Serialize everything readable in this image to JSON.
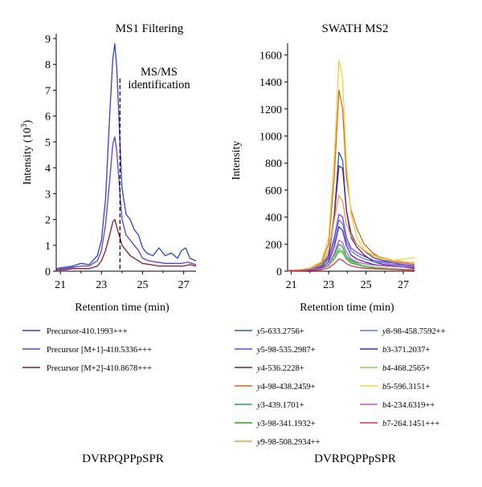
{
  "chart_data": [
    {
      "type": "line",
      "title": "MS1 Filtering",
      "xlabel": "Retention time (min)",
      "ylabel_main": "Intensity (10",
      "ylabel_sup": "3",
      "ylabel_tail": ")",
      "xlim": [
        20.8,
        27.6
      ],
      "ylim": [
        0,
        9
      ],
      "xticks": [
        "21",
        "23",
        "25",
        "27"
      ],
      "xtick_values": [
        21,
        23,
        25,
        27
      ],
      "yticks": [
        "0",
        "1",
        "2",
        "3",
        "4",
        "5",
        "6",
        "7",
        "8",
        "9"
      ],
      "ytick_values": [
        0,
        1,
        2,
        3,
        4,
        5,
        6,
        7,
        8,
        9
      ],
      "annotation": {
        "line1": "MS/MS",
        "line2": "identification",
        "x": 23.9
      },
      "peptide": "DVRPQPPpSPR",
      "series": [
        {
          "name": "Precursor-410.1993+++",
          "color": "#2846c8",
          "x": [
            20.8,
            21.2,
            21.6,
            22.0,
            22.4,
            22.8,
            23.0,
            23.2,
            23.4,
            23.55,
            23.65,
            23.75,
            23.9,
            24.0,
            24.2,
            24.4,
            24.6,
            24.8,
            25.0,
            25.2,
            25.5,
            25.8,
            26.1,
            26.4,
            26.7,
            26.9,
            27.1,
            27.3,
            27.6
          ],
          "y": [
            0.1,
            0.15,
            0.2,
            0.3,
            0.25,
            0.6,
            1.2,
            2.8,
            6.0,
            8.2,
            8.8,
            7.8,
            5.0,
            3.2,
            2.2,
            2.0,
            1.6,
            1.4,
            0.9,
            0.7,
            0.6,
            0.9,
            0.6,
            0.7,
            0.5,
            0.8,
            0.9,
            0.5,
            0.4
          ]
        },
        {
          "name": "Precursor [M+1]-410.5336+++",
          "color": "#6a3cc9",
          "x": [
            20.8,
            21.2,
            21.6,
            22.0,
            22.4,
            22.8,
            23.0,
            23.2,
            23.4,
            23.55,
            23.65,
            23.75,
            23.9,
            24.0,
            24.2,
            24.4,
            24.6,
            24.8,
            25.0,
            25.3,
            25.7,
            26.1,
            26.5,
            26.9,
            27.2,
            27.6
          ],
          "y": [
            0.1,
            0.1,
            0.15,
            0.2,
            0.2,
            0.4,
            0.8,
            1.8,
            3.5,
            4.9,
            5.2,
            4.6,
            3.0,
            2.0,
            1.4,
            1.2,
            1.0,
            0.8,
            0.5,
            0.4,
            0.35,
            0.3,
            0.3,
            0.3,
            0.35,
            0.25
          ]
        },
        {
          "name": "Precursor [M+2]-410.8678+++",
          "color": "#8b1a2e",
          "x": [
            20.8,
            21.2,
            21.6,
            22.0,
            22.4,
            22.8,
            23.0,
            23.2,
            23.4,
            23.55,
            23.65,
            23.75,
            23.9,
            24.0,
            24.2,
            24.4,
            24.6,
            24.8,
            25.0,
            25.4,
            25.8,
            26.2,
            26.6,
            27.0,
            27.3,
            27.6
          ],
          "y": [
            0.05,
            0.05,
            0.1,
            0.1,
            0.1,
            0.2,
            0.4,
            0.8,
            1.4,
            1.9,
            2.0,
            1.7,
            1.3,
            1.0,
            0.8,
            0.6,
            0.5,
            0.4,
            0.3,
            0.25,
            0.2,
            0.2,
            0.2,
            0.2,
            0.25,
            0.2
          ]
        }
      ]
    },
    {
      "type": "line",
      "title": "SWATH MS2",
      "xlabel": "Retention time (min)",
      "ylabel": "Intensity",
      "xlim": [
        20.8,
        27.6
      ],
      "ylim": [
        0,
        1650
      ],
      "xticks": [
        "21",
        "23",
        "25",
        "27"
      ],
      "xtick_values": [
        21,
        23,
        25,
        27
      ],
      "yticks": [
        "0",
        "200",
        "400",
        "600",
        "800",
        "1000",
        "1200",
        "1400",
        "1600"
      ],
      "ytick_values": [
        0,
        200,
        400,
        600,
        800,
        1000,
        1200,
        1400,
        1600
      ],
      "peptide": "DVRPQPPpSPR",
      "x": [
        20.8,
        21.4,
        22.0,
        22.6,
        23.0,
        23.3,
        23.55,
        23.75,
        23.95,
        24.2,
        24.5,
        24.9,
        25.4,
        25.9,
        26.5,
        27.0,
        27.6
      ],
      "series": [
        {
          "name_italic": "y",
          "name_rest": "5-633.2756+",
          "color": "#2b5ea8",
          "y": [
            5,
            10,
            15,
            40,
            120,
            420,
            880,
            820,
            450,
            280,
            200,
            150,
            100,
            80,
            60,
            40,
            30
          ]
        },
        {
          "name_italic": "y",
          "name_rest": "5-98-535.2987+",
          "color": "#7b3fe0",
          "y": [
            5,
            10,
            15,
            35,
            90,
            250,
            420,
            400,
            250,
            170,
            140,
            110,
            80,
            70,
            60,
            50,
            40
          ]
        },
        {
          "name_italic": "y",
          "name_rest": "4-536.2228+",
          "color": "#6b1f6e",
          "y": [
            5,
            8,
            12,
            30,
            100,
            400,
            780,
            760,
            450,
            250,
            180,
            120,
            70,
            50,
            40,
            30,
            20
          ]
        },
        {
          "name_italic": "y",
          "name_rest": "4-98-438.2459+",
          "color": "#d2691e",
          "y": [
            5,
            10,
            20,
            60,
            200,
            700,
            1340,
            1200,
            700,
            450,
            320,
            200,
            130,
            90,
            70,
            60,
            50
          ]
        },
        {
          "name_italic": "y",
          "name_rest": "3-439.1701+",
          "color": "#2e9a6a",
          "y": [
            3,
            5,
            10,
            20,
            50,
            120,
            200,
            180,
            110,
            80,
            60,
            40,
            30,
            20,
            15,
            10,
            10
          ]
        },
        {
          "name_italic": "y",
          "name_rest": "3-98-341.1932+",
          "color": "#2aa02a",
          "y": [
            3,
            5,
            10,
            18,
            40,
            90,
            150,
            140,
            90,
            60,
            50,
            35,
            25,
            20,
            15,
            12,
            10
          ]
        },
        {
          "name_italic": "y",
          "name_rest": "9-98-508.2934++",
          "color": "#f39c3d",
          "y": [
            5,
            10,
            20,
            50,
            150,
            380,
            560,
            520,
            350,
            260,
            200,
            150,
            120,
            100,
            80,
            70,
            60
          ]
        },
        {
          "name_italic": "y",
          "name_rest": "8-98-458.7592++",
          "color": "#5b7fe8",
          "y": [
            4,
            8,
            15,
            35,
            90,
            220,
            380,
            350,
            220,
            150,
            120,
            90,
            70,
            60,
            50,
            40,
            35
          ]
        },
        {
          "name_italic": "b",
          "name_rest": "3-371.2037+",
          "color": "#4b2aa0",
          "y": [
            3,
            6,
            10,
            25,
            70,
            180,
            330,
            300,
            190,
            120,
            90,
            70,
            50,
            40,
            35,
            30,
            25
          ]
        },
        {
          "name_italic": "b",
          "name_rest": "4-468.2565+",
          "color": "#7ed957",
          "y": [
            3,
            5,
            10,
            20,
            40,
            100,
            170,
            150,
            100,
            70,
            55,
            40,
            30,
            25,
            20,
            15,
            12
          ]
        },
        {
          "name_italic": "b",
          "name_rest": "5-596.3151+",
          "color": "#f7d13a",
          "y": [
            5,
            10,
            25,
            70,
            250,
            850,
            1560,
            1420,
            800,
            420,
            250,
            160,
            110,
            90,
            80,
            90,
            100
          ]
        },
        {
          "name_italic": "b",
          "name_rest": "4-234.6319++",
          "color": "#c05ad8",
          "y": [
            3,
            6,
            10,
            20,
            50,
            130,
            230,
            210,
            140,
            90,
            70,
            55,
            45,
            40,
            35,
            30,
            30
          ]
        },
        {
          "name_italic": "b",
          "name_rest": "7-264.1451+++",
          "color": "#e0305a",
          "y": [
            2,
            4,
            6,
            10,
            25,
            55,
            90,
            80,
            55,
            40,
            30,
            22,
            18,
            15,
            12,
            10,
            8
          ]
        }
      ]
    }
  ]
}
